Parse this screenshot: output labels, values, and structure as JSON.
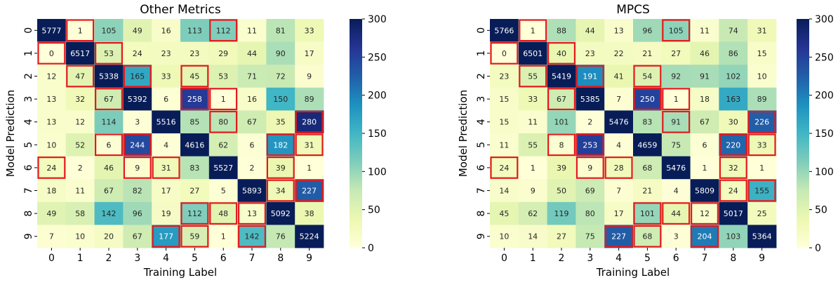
{
  "chart_data": [
    {
      "type": "heatmap",
      "title": "Other Metrics",
      "xlabel": "Training Label",
      "ylabel": "Model Prediction",
      "x_categories": [
        "0",
        "1",
        "2",
        "3",
        "4",
        "5",
        "6",
        "7",
        "8",
        "9"
      ],
      "y_categories": [
        "0",
        "1",
        "2",
        "3",
        "4",
        "5",
        "6",
        "7",
        "8",
        "9"
      ],
      "colorbar": {
        "min": 0,
        "max": 300,
        "ticks": [
          0,
          50,
          100,
          150,
          200,
          250,
          300
        ],
        "colormap": "YlGnBu"
      },
      "values": [
        [
          5777,
          1,
          105,
          49,
          16,
          113,
          112,
          11,
          81,
          33
        ],
        [
          0,
          6517,
          53,
          24,
          23,
          23,
          29,
          44,
          90,
          17
        ],
        [
          12,
          47,
          5338,
          165,
          33,
          45,
          53,
          71,
          72,
          9
        ],
        [
          13,
          32,
          67,
          5392,
          6,
          258,
          1,
          16,
          150,
          89
        ],
        [
          13,
          12,
          114,
          3,
          5516,
          85,
          80,
          67,
          35,
          280
        ],
        [
          10,
          52,
          6,
          244,
          4,
          4616,
          62,
          6,
          182,
          31
        ],
        [
          24,
          2,
          46,
          9,
          31,
          83,
          5527,
          2,
          39,
          1
        ],
        [
          18,
          11,
          67,
          82,
          17,
          27,
          5,
          5893,
          34,
          227
        ],
        [
          49,
          58,
          142,
          96,
          19,
          112,
          48,
          13,
          5092,
          38
        ],
        [
          7,
          10,
          20,
          67,
          177,
          59,
          1,
          142,
          76,
          5224
        ]
      ],
      "highlighted_cells": [
        [
          0,
          1
        ],
        [
          0,
          6
        ],
        [
          1,
          0
        ],
        [
          1,
          2
        ],
        [
          2,
          1
        ],
        [
          2,
          3
        ],
        [
          2,
          5
        ],
        [
          3,
          2
        ],
        [
          3,
          5
        ],
        [
          3,
          6
        ],
        [
          4,
          6
        ],
        [
          4,
          9
        ],
        [
          5,
          2
        ],
        [
          5,
          3
        ],
        [
          5,
          8
        ],
        [
          5,
          9
        ],
        [
          6,
          0
        ],
        [
          6,
          3
        ],
        [
          6,
          4
        ],
        [
          6,
          8
        ],
        [
          7,
          8
        ],
        [
          7,
          9
        ],
        [
          8,
          5
        ],
        [
          8,
          6
        ],
        [
          8,
          7
        ],
        [
          9,
          4
        ],
        [
          9,
          5
        ],
        [
          9,
          7
        ]
      ],
      "highlight_color": "#e31a1c"
    },
    {
      "type": "heatmap",
      "title": "MPCS",
      "xlabel": "Training Label",
      "ylabel": "Model Prediction",
      "x_categories": [
        "0",
        "1",
        "2",
        "3",
        "4",
        "5",
        "6",
        "7",
        "8",
        "9"
      ],
      "y_categories": [
        "0",
        "1",
        "2",
        "3",
        "4",
        "5",
        "6",
        "7",
        "8",
        "9"
      ],
      "colorbar": {
        "min": 0,
        "max": 300,
        "ticks": [
          0,
          50,
          100,
          150,
          200,
          250,
          300
        ],
        "colormap": "YlGnBu"
      },
      "values": [
        [
          5766,
          1,
          88,
          44,
          13,
          96,
          105,
          11,
          74,
          31
        ],
        [
          0,
          6501,
          40,
          23,
          22,
          21,
          27,
          46,
          86,
          15
        ],
        [
          23,
          55,
          5419,
          191,
          41,
          54,
          92,
          91,
          102,
          10
        ],
        [
          15,
          33,
          67,
          5385,
          7,
          250,
          1,
          18,
          163,
          89
        ],
        [
          15,
          11,
          101,
          2,
          5476,
          83,
          91,
          67,
          30,
          226
        ],
        [
          11,
          55,
          8,
          253,
          4,
          4659,
          75,
          6,
          220,
          33
        ],
        [
          24,
          1,
          39,
          9,
          28,
          68,
          5476,
          1,
          32,
          1
        ],
        [
          14,
          9,
          50,
          69,
          7,
          21,
          4,
          5809,
          24,
          155
        ],
        [
          45,
          62,
          119,
          80,
          17,
          101,
          44,
          12,
          5017,
          25
        ],
        [
          10,
          14,
          27,
          75,
          227,
          68,
          3,
          204,
          103,
          5364
        ]
      ],
      "highlighted_cells": [
        [
          0,
          1
        ],
        [
          0,
          6
        ],
        [
          1,
          0
        ],
        [
          1,
          2
        ],
        [
          2,
          1
        ],
        [
          2,
          3
        ],
        [
          2,
          5
        ],
        [
          3,
          2
        ],
        [
          3,
          5
        ],
        [
          3,
          6
        ],
        [
          4,
          6
        ],
        [
          4,
          9
        ],
        [
          5,
          2
        ],
        [
          5,
          3
        ],
        [
          5,
          8
        ],
        [
          5,
          9
        ],
        [
          6,
          0
        ],
        [
          6,
          3
        ],
        [
          6,
          4
        ],
        [
          6,
          8
        ],
        [
          7,
          8
        ],
        [
          7,
          9
        ],
        [
          8,
          5
        ],
        [
          8,
          6
        ],
        [
          8,
          7
        ],
        [
          9,
          4
        ],
        [
          9,
          5
        ],
        [
          9,
          7
        ]
      ],
      "highlight_color": "#e31a1c"
    }
  ]
}
